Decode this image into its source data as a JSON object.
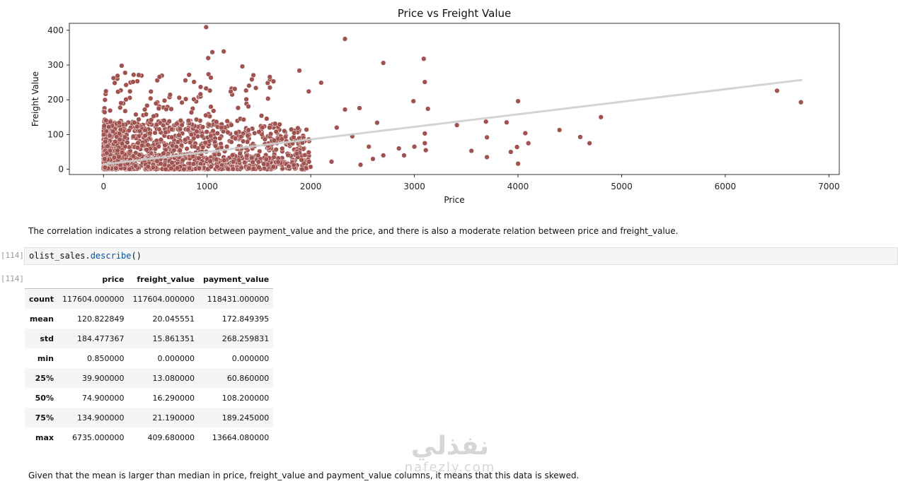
{
  "chart_data": {
    "type": "scatter",
    "title": "Price vs Freight Value",
    "xlabel": "Price",
    "ylabel": "Freight Value",
    "xlim": [
      -330,
      7100
    ],
    "ylim": [
      -15,
      420
    ],
    "x_ticks": [
      0,
      1000,
      2000,
      3000,
      4000,
      5000,
      6000,
      7000
    ],
    "y_ticks": [
      0,
      100,
      200,
      300,
      400
    ],
    "grid": false,
    "point_color": "#a0524f",
    "regression_color": "#cfcfcf",
    "regression_line": {
      "x": [
        0,
        6735
      ],
      "y": [
        14,
        257
      ]
    },
    "dense_cluster": {
      "x_range": [
        0,
        2000
      ],
      "y_range": [
        0,
        130
      ]
    },
    "points": [
      {
        "x": 990,
        "y": 409
      },
      {
        "x": 2330,
        "y": 375
      },
      {
        "x": 1160,
        "y": 339
      },
      {
        "x": 3090,
        "y": 318
      },
      {
        "x": 1050,
        "y": 337
      },
      {
        "x": 1010,
        "y": 320
      },
      {
        "x": 2700,
        "y": 306
      },
      {
        "x": 1340,
        "y": 296
      },
      {
        "x": 175,
        "y": 298
      },
      {
        "x": 1890,
        "y": 284
      },
      {
        "x": 540,
        "y": 266
      },
      {
        "x": 135,
        "y": 269
      },
      {
        "x": 1640,
        "y": 253
      },
      {
        "x": 3100,
        "y": 251
      },
      {
        "x": 2100,
        "y": 249
      },
      {
        "x": 6500,
        "y": 226
      },
      {
        "x": 1470,
        "y": 234
      },
      {
        "x": 1980,
        "y": 224
      },
      {
        "x": 6730,
        "y": 193
      },
      {
        "x": 4000,
        "y": 196
      },
      {
        "x": 2990,
        "y": 196
      },
      {
        "x": 3130,
        "y": 174
      },
      {
        "x": 2330,
        "y": 172
      },
      {
        "x": 2470,
        "y": 176
      },
      {
        "x": 4800,
        "y": 150
      },
      {
        "x": 3690,
        "y": 137
      },
      {
        "x": 3890,
        "y": 135
      },
      {
        "x": 3410,
        "y": 127
      },
      {
        "x": 2640,
        "y": 134
      },
      {
        "x": 4400,
        "y": 113
      },
      {
        "x": 4070,
        "y": 104
      },
      {
        "x": 3100,
        "y": 103
      },
      {
        "x": 4600,
        "y": 93
      },
      {
        "x": 3700,
        "y": 92
      },
      {
        "x": 4690,
        "y": 75
      },
      {
        "x": 4100,
        "y": 75
      },
      {
        "x": 3100,
        "y": 75
      },
      {
        "x": 3990,
        "y": 64
      },
      {
        "x": 3000,
        "y": 65
      },
      {
        "x": 3550,
        "y": 53
      },
      {
        "x": 3930,
        "y": 50
      },
      {
        "x": 3110,
        "y": 55
      },
      {
        "x": 3700,
        "y": 35
      },
      {
        "x": 4000,
        "y": 16
      },
      {
        "x": 2560,
        "y": 65
      },
      {
        "x": 2700,
        "y": 40
      },
      {
        "x": 2480,
        "y": 13
      },
      {
        "x": 2200,
        "y": 22
      },
      {
        "x": 2850,
        "y": 60
      },
      {
        "x": 2900,
        "y": 40
      },
      {
        "x": 1200,
        "y": 1
      },
      {
        "x": 2600,
        "y": 30
      },
      {
        "x": 2400,
        "y": 95
      },
      {
        "x": 2250,
        "y": 120
      }
    ]
  },
  "markdown_1": "The correlation indicates a strong relation between payment_value and the price, and there is also a moderate relation between price and freight_value.",
  "code_cell": {
    "prompt": "[114]:",
    "obj": "olist_sales.",
    "method": "describe",
    "suffix": "()"
  },
  "output": {
    "prompt": "[114]:",
    "table": {
      "columns": [
        "price",
        "freight_value",
        "payment_value"
      ],
      "rows": [
        {
          "label": "count",
          "values": [
            "117604.000000",
            "117604.000000",
            "118431.000000"
          ]
        },
        {
          "label": "mean",
          "values": [
            "120.822849",
            "20.045551",
            "172.849395"
          ]
        },
        {
          "label": "std",
          "values": [
            "184.477367",
            "15.861351",
            "268.259831"
          ]
        },
        {
          "label": "min",
          "values": [
            "0.850000",
            "0.000000",
            "0.000000"
          ]
        },
        {
          "label": "25%",
          "values": [
            "39.900000",
            "13.080000",
            "60.860000"
          ]
        },
        {
          "label": "50%",
          "values": [
            "74.900000",
            "16.290000",
            "108.200000"
          ]
        },
        {
          "label": "75%",
          "values": [
            "134.900000",
            "21.190000",
            "189.245000"
          ]
        },
        {
          "label": "max",
          "values": [
            "6735.000000",
            "409.680000",
            "13664.080000"
          ]
        }
      ]
    }
  },
  "markdown_2": "Given that the mean is larger than median in price, freight_value and payment_value columns, it means that this data is skewed.",
  "watermark": {
    "arabic": "نفذلي",
    "latin": "nafezly.com"
  }
}
